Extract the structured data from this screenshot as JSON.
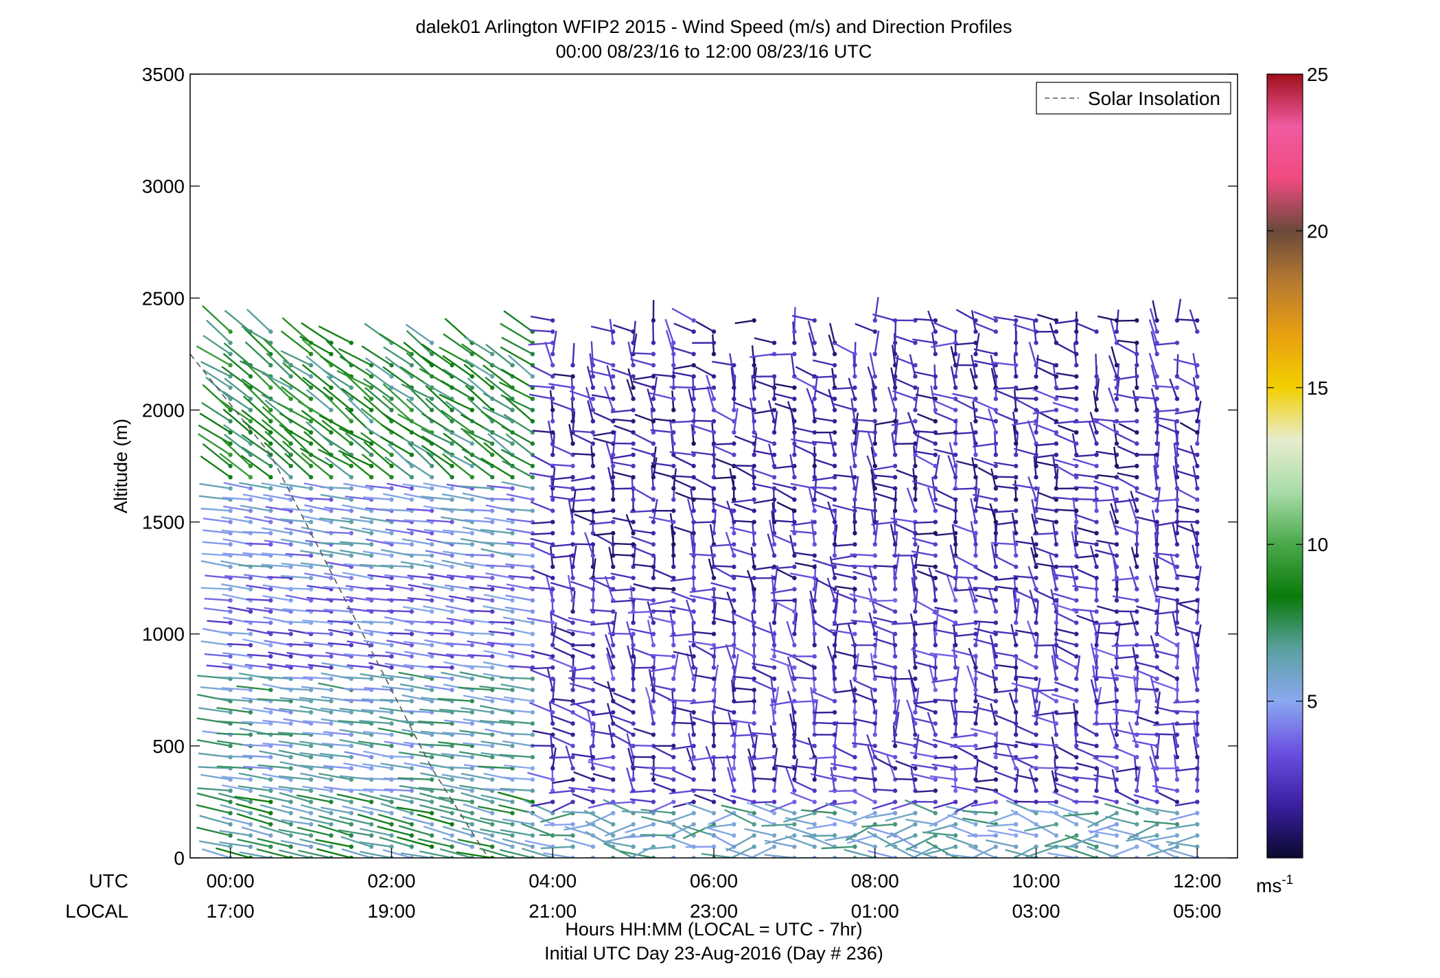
{
  "chart_data": {
    "type": "wind-barb-profile",
    "title": "dalek01 Arlington WFIP2 2015 - Wind Speed (m/s) and Direction Profiles",
    "subtitle": "00:00 08/23/16 to 12:00 08/23/16  UTC",
    "ylabel": "Altitude (m)",
    "xlabel": "Hours HH:MM  (LOCAL = UTC - 7hr)",
    "xlabel2": "Initial UTC Day 23-Aug-2016 (Day # 236)",
    "row_label_utc": "UTC",
    "row_label_local": "LOCAL",
    "xlim_hours": [
      -0.5,
      12.5
    ],
    "ylim": [
      0,
      3500
    ],
    "yticks": [
      0,
      500,
      1000,
      1500,
      2000,
      2500,
      3000,
      3500
    ],
    "xticks_hours": [
      0,
      2,
      4,
      6,
      8,
      10,
      12
    ],
    "xtick_labels_utc": [
      "00:00",
      "02:00",
      "04:00",
      "06:00",
      "08:00",
      "10:00",
      "12:00"
    ],
    "xtick_labels_local": [
      "17:00",
      "19:00",
      "21:00",
      "23:00",
      "01:00",
      "03:00",
      "05:00"
    ],
    "legend": {
      "entries": [
        "Solar Insolation"
      ],
      "placement": "top-right"
    },
    "solar_insolation": {
      "style": "dashed",
      "color": "#555555",
      "x_hours": [
        -0.5,
        0.5,
        1.5,
        2.5,
        3.2
      ],
      "altitude_m": [
        2250,
        1800,
        1100,
        400,
        0
      ]
    },
    "colorbar": {
      "min": 0,
      "max": 25,
      "ticks": [
        5,
        10,
        15,
        20,
        25
      ],
      "unit_label": "ms",
      "unit_exp": "-1",
      "colors": [
        "#0a0a2e",
        "#3a1fa0",
        "#6a4ee0",
        "#8aa8f0",
        "#5aa0a0",
        "#0a7a0a",
        "#4aa84a",
        "#a8dca8",
        "#e8ecd0",
        "#f2d000",
        "#e8a010",
        "#b87a30",
        "#6a4a3a",
        "#f04a80",
        "#f05aa0",
        "#a0101a"
      ]
    },
    "profiles": {
      "time_step_hours": 0.25,
      "altitude_step_m": 50,
      "speed_regimes": [
        {
          "hours": [
            0,
            3.9
          ],
          "altitude_m": [
            0,
            300
          ],
          "speed_ms": 7
        },
        {
          "hours": [
            0,
            3.9
          ],
          "altitude_m": [
            300,
            850
          ],
          "speed_ms": 6
        },
        {
          "hours": [
            0,
            3.9
          ],
          "altitude_m": [
            850,
            1300
          ],
          "speed_ms": 4
        },
        {
          "hours": [
            0,
            3.9
          ],
          "altitude_m": [
            1300,
            1700
          ],
          "speed_ms": 5
        },
        {
          "hours": [
            0,
            3.9
          ],
          "altitude_m": [
            1700,
            2400
          ],
          "speed_ms": 8
        },
        {
          "hours": [
            4.0,
            12.0
          ],
          "altitude_m": [
            0,
            250
          ],
          "speed_ms": 6
        },
        {
          "hours": [
            4.0,
            12.0
          ],
          "altitude_m": [
            250,
            1200
          ],
          "speed_ms": 2.5
        },
        {
          "hours": [
            4.0,
            12.0
          ],
          "altitude_m": [
            1200,
            2450
          ],
          "speed_ms": 2
        }
      ]
    }
  }
}
